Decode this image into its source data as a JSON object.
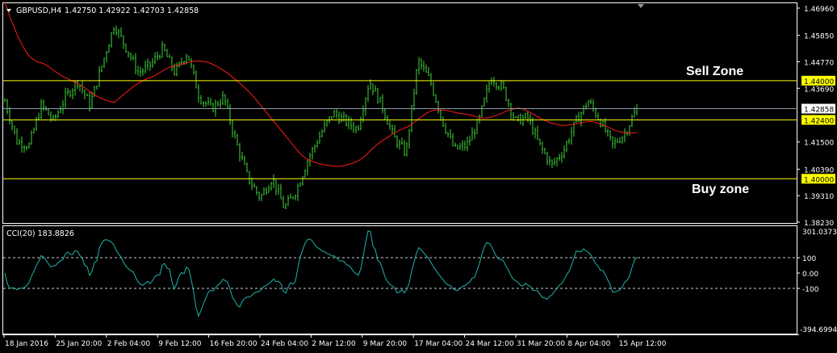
{
  "header": {
    "symbol": "GBPUSD,H4",
    "ohlc": "1.42750 1.42922 1.42703 1.42858"
  },
  "indicator": {
    "label": "CCI(20) 183.8826",
    "max_label": "301.0373",
    "min_label": "-394.6994",
    "levels": [
      "100",
      "0.00",
      "-100"
    ]
  },
  "annotations": {
    "sell_zone": "Sell Zone",
    "buy_zone": "Buy zone"
  },
  "colors": {
    "background": "#000000",
    "bars": "#3fd23a",
    "ma": "#ff1a1a",
    "cci": "#20b2aa",
    "zone_lines": "#ffff00",
    "price_line": "#8a9aa8"
  },
  "chart_data": [
    {
      "type": "bar",
      "title": "GBPUSD,H4",
      "price_axis_ticks": [
        "1.46960",
        "1.45850",
        "1.44770",
        "1.43690",
        "1.41500",
        "1.40390",
        "1.39310",
        "1.38230"
      ],
      "ylim": [
        1.3823,
        1.4696
      ],
      "time_axis_ticks": [
        "18 Jan 2016",
        "25 Jan 20:00",
        "2 Feb 04:00",
        "9 Feb 12:00",
        "16 Feb 20:00",
        "24 Feb 04:00",
        "2 Mar 12:00",
        "9 Mar 20:00",
        "17 Mar 04:00",
        "24 Mar 12:00",
        "31 Mar 20:00",
        "8 Apr 04:00",
        "15 Apr 12:00"
      ],
      "horizontal_levels": [
        {
          "value": 1.44,
          "label": "1.44000"
        },
        {
          "value": 1.424,
          "label": "1.42400"
        },
        {
          "value": 1.4,
          "label": "1.40000"
        }
      ],
      "current_price": {
        "value": 1.42858,
        "label": "1.42858"
      },
      "close_path_approx": [
        1.4317,
        1.4152,
        1.4136,
        1.4301,
        1.4235,
        1.4334,
        1.4399,
        1.4301,
        1.4465,
        1.463,
        1.4531,
        1.4432,
        1.4465,
        1.4531,
        1.4432,
        1.4515,
        1.4334,
        1.4284,
        1.4334,
        1.4152,
        1.4004,
        1.3922,
        1.4004,
        1.3879,
        1.3955,
        1.4086,
        1.4185,
        1.4268,
        1.4235,
        1.4202,
        1.4399,
        1.4301,
        1.4169,
        1.4103,
        1.4482,
        1.4399,
        1.4235,
        1.4119,
        1.4136,
        1.4235,
        1.4416,
        1.4367,
        1.4235,
        1.4251,
        1.4136,
        1.4053,
        1.4119,
        1.4235,
        1.4317,
        1.4235,
        1.4136,
        1.4185,
        1.4286
      ],
      "overlay": "moving average (red)",
      "grid": false
    },
    {
      "type": "line",
      "title": "CCI(20) 183.8826",
      "ylim": [
        -394.6994,
        301.0373
      ],
      "levels": [
        100,
        0,
        -100
      ]
    }
  ]
}
